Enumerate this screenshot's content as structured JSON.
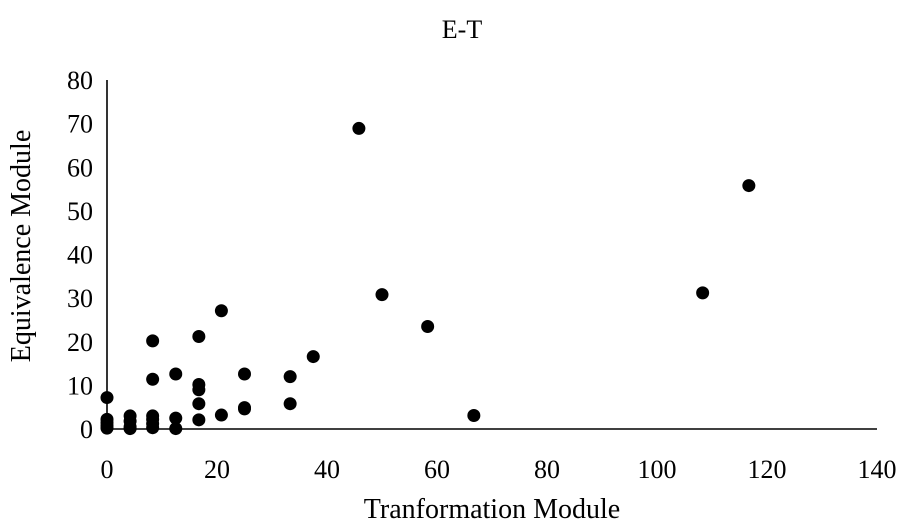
{
  "chart_data": {
    "type": "scatter",
    "title": "E-T",
    "xlabel": "Tranformation Module",
    "ylabel": "Equivalence Module",
    "xlim": [
      0,
      140
    ],
    "ylim": [
      0,
      80
    ],
    "xticks": [
      0,
      20,
      40,
      60,
      80,
      100,
      120,
      140
    ],
    "yticks": [
      0,
      10,
      20,
      30,
      40,
      50,
      60,
      70,
      80
    ],
    "grid": false,
    "legend": "none",
    "marker_color": "#000000",
    "points": [
      {
        "x": 0,
        "y": 7.2
      },
      {
        "x": 0,
        "y": 2.2
      },
      {
        "x": 0,
        "y": 1.5
      },
      {
        "x": 0,
        "y": 0.8
      },
      {
        "x": 0,
        "y": 0.2
      },
      {
        "x": 4.2,
        "y": 3.0
      },
      {
        "x": 4.2,
        "y": 1.8
      },
      {
        "x": 4.2,
        "y": 0.5
      },
      {
        "x": 4.2,
        "y": 0.1
      },
      {
        "x": 8.3,
        "y": 20.2
      },
      {
        "x": 8.3,
        "y": 11.4
      },
      {
        "x": 8.3,
        "y": 3.0
      },
      {
        "x": 8.3,
        "y": 2.2
      },
      {
        "x": 8.3,
        "y": 1.2
      },
      {
        "x": 8.3,
        "y": 0.3
      },
      {
        "x": 12.5,
        "y": 12.6
      },
      {
        "x": 12.5,
        "y": 2.5
      },
      {
        "x": 12.5,
        "y": 0.1
      },
      {
        "x": 16.7,
        "y": 21.2
      },
      {
        "x": 16.7,
        "y": 10.2
      },
      {
        "x": 16.7,
        "y": 9.0
      },
      {
        "x": 16.7,
        "y": 5.8
      },
      {
        "x": 16.7,
        "y": 2.1
      },
      {
        "x": 20.8,
        "y": 27.1
      },
      {
        "x": 20.8,
        "y": 3.2
      },
      {
        "x": 25.0,
        "y": 12.6
      },
      {
        "x": 25.0,
        "y": 4.9
      },
      {
        "x": 25.0,
        "y": 4.6
      },
      {
        "x": 33.3,
        "y": 12.0
      },
      {
        "x": 33.3,
        "y": 5.8
      },
      {
        "x": 37.5,
        "y": 16.6
      },
      {
        "x": 45.8,
        "y": 68.9
      },
      {
        "x": 50.0,
        "y": 30.8
      },
      {
        "x": 58.3,
        "y": 23.5
      },
      {
        "x": 66.7,
        "y": 3.1
      },
      {
        "x": 108.3,
        "y": 31.2
      },
      {
        "x": 116.7,
        "y": 55.8
      }
    ]
  }
}
